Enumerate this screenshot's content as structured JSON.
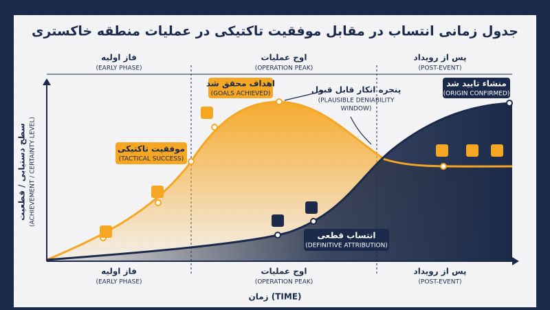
{
  "header": {
    "title": "جدول زمانی انتساب در مقابل موفقیت تاکتیکی در عملیات منطقه خاکستری"
  },
  "phases": [
    {
      "label": "فاز اولیه",
      "sublabel": "(EARLY PHASE)"
    },
    {
      "label": "اوج عملیات",
      "sublabel": "(OPERATION PEAK)"
    },
    {
      "label": "پس از رویداد",
      "sublabel": "(POST-EVENT)"
    }
  ],
  "axes": {
    "y_label": "سطح دستیابی / قطعیت",
    "y_sublabel": "(ACHIEVEMENT / CERTAINTY LEVEL)",
    "x_label": "زمان (TIME)"
  },
  "annotations": {
    "goals": {
      "label": "اهداف محقق شد",
      "sublabel": "(GOALS ACHIEVED)"
    },
    "tactical": {
      "label": "موفقیت تاکتیکی",
      "sublabel": "(TACTICAL SUCCESS)"
    },
    "window": {
      "label": "پنجره انکار قابل قبول",
      "line1": "(PLAUSIBLE DENIABILITY",
      "line2": "WINDOW)"
    },
    "origin": {
      "label": "منشاء تایید شد",
      "sublabel": "(ORIGIN CONFIRMED)"
    },
    "attribution": {
      "label": "انتساب قطعی",
      "sublabel": "(DEFINITIVE ATTRIBUTION)"
    }
  }
}
